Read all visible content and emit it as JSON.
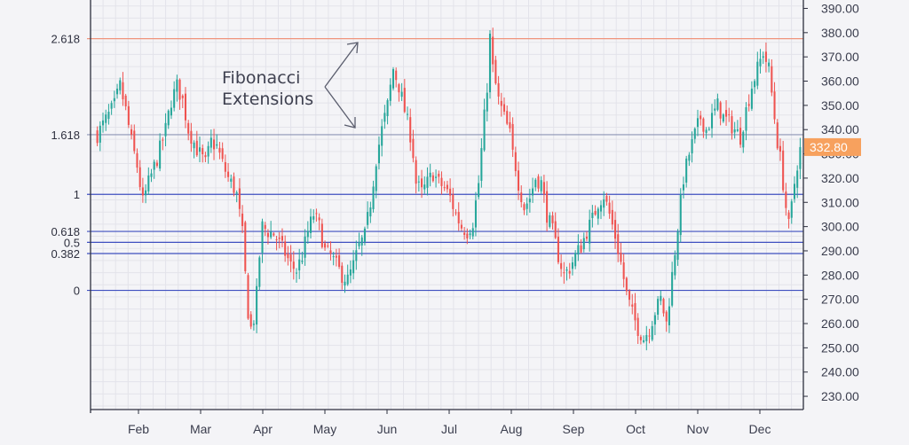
{
  "chart_data": {
    "type": "candlestick",
    "x_axis": {
      "ticks": [
        "Feb",
        "Mar",
        "Apr",
        "May",
        "Jun",
        "Jul",
        "Aug",
        "Sep",
        "Oct",
        "Nov",
        "Dec"
      ]
    },
    "y_axis": {
      "ylim": [
        226,
        392
      ],
      "ticks": [
        "230.00",
        "240.00",
        "250.00",
        "260.00",
        "270.00",
        "280.00",
        "290.00",
        "300.00",
        "310.00",
        "320.00",
        "330.00",
        "340.00",
        "350.00",
        "360.00",
        "370.00",
        "380.00",
        "390.00"
      ],
      "position": "right"
    },
    "grid": true,
    "last_price": {
      "label": "332.80",
      "value": 332.8,
      "color": "#f7a15e"
    },
    "fibonacci": {
      "annotation": [
        "Fibonacci",
        "Extensions"
      ],
      "levels": [
        {
          "label": "2.618",
          "value": 377.5,
          "color": "#f0937c"
        },
        {
          "label": "1.618",
          "value": 337.9,
          "color": "#8d95b5"
        },
        {
          "label": "1",
          "value": 313.3,
          "color": "#3f4fc0"
        },
        {
          "label": "0.618",
          "value": 298.0,
          "color": "#3f4fc0"
        },
        {
          "label": "0.5",
          "value": 293.5,
          "color": "#3f4fc0"
        },
        {
          "label": "0.382",
          "value": 288.9,
          "color": "#3f4fc0"
        },
        {
          "label": "0",
          "value": 273.7,
          "color": "#3f4fc0"
        }
      ]
    },
    "colors": {
      "up": "#26a69a",
      "down": "#ef5350"
    },
    "close_path": [
      [
        0,
        338
      ],
      [
        3,
        344
      ],
      [
        6,
        350
      ],
      [
        8,
        358
      ],
      [
        10,
        348
      ],
      [
        12,
        335
      ],
      [
        14,
        325
      ],
      [
        16,
        310
      ],
      [
        18,
        318
      ],
      [
        21,
        328
      ],
      [
        24,
        340
      ],
      [
        26,
        352
      ],
      [
        28,
        358
      ],
      [
        30,
        352
      ],
      [
        32,
        340
      ],
      [
        35,
        332
      ],
      [
        38,
        326
      ],
      [
        40,
        335
      ],
      [
        42,
        333
      ],
      [
        44,
        326
      ],
      [
        46,
        320
      ],
      [
        48,
        316
      ],
      [
        49,
        313
      ],
      [
        50,
        305
      ],
      [
        51,
        297
      ],
      [
        52,
        280
      ],
      [
        53,
        265
      ],
      [
        54,
        258
      ],
      [
        55,
        262
      ],
      [
        56,
        272
      ],
      [
        57,
        288
      ],
      [
        58,
        300
      ],
      [
        60,
        298
      ],
      [
        62,
        297
      ],
      [
        64,
        293
      ],
      [
        66,
        289
      ],
      [
        68,
        284
      ],
      [
        70,
        282
      ],
      [
        72,
        288
      ],
      [
        74,
        298
      ],
      [
        76,
        305
      ],
      [
        78,
        300
      ],
      [
        80,
        290
      ],
      [
        82,
        288
      ],
      [
        84,
        284
      ],
      [
        86,
        280
      ],
      [
        88,
        278
      ],
      [
        90,
        284
      ],
      [
        92,
        292
      ],
      [
        94,
        296
      ],
      [
        96,
        310
      ],
      [
        98,
        328
      ],
      [
        100,
        340
      ],
      [
        102,
        350
      ],
      [
        104,
        365
      ],
      [
        106,
        358
      ],
      [
        108,
        348
      ],
      [
        110,
        338
      ],
      [
        111,
        330
      ],
      [
        112,
        318
      ],
      [
        114,
        314
      ],
      [
        116,
        318
      ],
      [
        118,
        322
      ],
      [
        120,
        318
      ],
      [
        122,
        316
      ],
      [
        124,
        312
      ],
      [
        126,
        305
      ],
      [
        128,
        300
      ],
      [
        130,
        298
      ],
      [
        132,
        302
      ],
      [
        134,
        318
      ],
      [
        136,
        345
      ],
      [
        137,
        358
      ],
      [
        138,
        378
      ],
      [
        139,
        365
      ],
      [
        141,
        352
      ],
      [
        143,
        345
      ],
      [
        145,
        338
      ],
      [
        146,
        330
      ],
      [
        147,
        325
      ],
      [
        148,
        318
      ],
      [
        150,
        308
      ],
      [
        152,
        312
      ],
      [
        154,
        320
      ],
      [
        156,
        318
      ],
      [
        158,
        305
      ],
      [
        160,
        298
      ],
      [
        162,
        288
      ],
      [
        164,
        280
      ],
      [
        166,
        283
      ],
      [
        168,
        288
      ],
      [
        170,
        292
      ],
      [
        172,
        298
      ],
      [
        174,
        303
      ],
      [
        176,
        310
      ],
      [
        178,
        313
      ],
      [
        180,
        305
      ],
      [
        182,
        296
      ],
      [
        184,
        285
      ],
      [
        186,
        272
      ],
      [
        188,
        264
      ],
      [
        190,
        258
      ],
      [
        192,
        254
      ],
      [
        194,
        258
      ],
      [
        196,
        265
      ],
      [
        198,
        270
      ],
      [
        200,
        260
      ],
      [
        202,
        280
      ],
      [
        204,
        300
      ],
      [
        206,
        320
      ],
      [
        208,
        330
      ],
      [
        210,
        338
      ],
      [
        212,
        345
      ],
      [
        214,
        340
      ],
      [
        216,
        345
      ],
      [
        218,
        350
      ],
      [
        220,
        345
      ],
      [
        222,
        343
      ],
      [
        224,
        340
      ],
      [
        226,
        337
      ],
      [
        228,
        348
      ],
      [
        230,
        358
      ],
      [
        232,
        365
      ],
      [
        234,
        372
      ],
      [
        236,
        365
      ],
      [
        237,
        355
      ],
      [
        238,
        345
      ],
      [
        239,
        335
      ],
      [
        240,
        328
      ],
      [
        241,
        318
      ],
      [
        242,
        308
      ],
      [
        243,
        300
      ],
      [
        244,
        308
      ],
      [
        245,
        318
      ],
      [
        246,
        326
      ],
      [
        247,
        332.8
      ]
    ]
  }
}
